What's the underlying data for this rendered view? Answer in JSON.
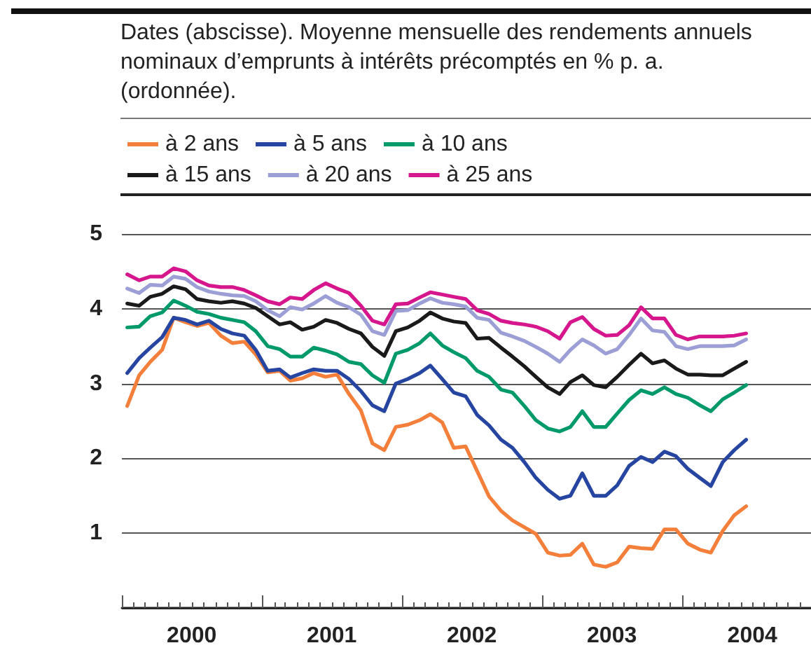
{
  "chart_data": {
    "type": "line",
    "title": "Dates (abscisse). Moyenne mensuelle des rendements annuels nominaux d’emprunts à intérêts précomptés en % p. a. (ordonnée).",
    "x": [
      "2000-01-15",
      "2000-02-15",
      "2000-03-15",
      "2000-04-15",
      "2000-05-15",
      "2000-06-15",
      "2000-07-15",
      "2000-08-15",
      "2000-09-15",
      "2000-10-15",
      "2000-11-15",
      "2000-12-15",
      "2001-01-15",
      "2001-02-15",
      "2001-03-15",
      "2001-04-15",
      "2001-05-15",
      "2001-06-15",
      "2001-07-15",
      "2001-08-15",
      "2001-09-15",
      "2001-10-15",
      "2001-11-15",
      "2001-12-15",
      "2002-01-15",
      "2002-02-15",
      "2002-03-15",
      "2002-04-15",
      "2002-05-15",
      "2002-06-15",
      "2002-07-15",
      "2002-08-15",
      "2002-09-15",
      "2002-10-15",
      "2002-11-15",
      "2002-12-15",
      "2003-01-15",
      "2003-02-15",
      "2003-03-15",
      "2003-04-15",
      "2003-05-15",
      "2003-06-15",
      "2003-07-15",
      "2003-08-15",
      "2003-09-15",
      "2003-10-15",
      "2003-11-15",
      "2003-12-15",
      "2004-01-15",
      "2004-02-15",
      "2004-03-15",
      "2004-04-15",
      "2004-05-15",
      "2004-06-15"
    ],
    "series": [
      {
        "name": "à 2 ans",
        "color": "#f47f3a",
        "values": [
          2.7,
          3.11,
          3.29,
          3.45,
          3.88,
          3.82,
          3.77,
          3.81,
          3.64,
          3.54,
          3.56,
          3.39,
          3.15,
          3.17,
          3.04,
          3.07,
          3.14,
          3.09,
          3.12,
          2.86,
          2.64,
          2.2,
          2.11,
          2.42,
          2.45,
          2.51,
          2.59,
          2.48,
          2.14,
          2.16,
          1.83,
          1.49,
          1.3,
          1.17,
          1.08,
          0.99,
          0.74,
          0.7,
          0.71,
          0.86,
          0.58,
          0.55,
          0.61,
          0.82,
          0.8,
          0.79,
          1.05,
          1.05,
          0.86,
          0.78,
          0.74,
          1.03,
          1.24,
          1.36
        ]
      },
      {
        "name": "à 5 ans",
        "color": "#2545a0",
        "values": [
          3.14,
          3.34,
          3.48,
          3.62,
          3.88,
          3.85,
          3.79,
          3.84,
          3.73,
          3.67,
          3.64,
          3.45,
          3.17,
          3.19,
          3.08,
          3.14,
          3.19,
          3.17,
          3.17,
          3.06,
          2.9,
          2.71,
          2.63,
          3.0,
          3.06,
          3.14,
          3.24,
          3.06,
          2.88,
          2.83,
          2.58,
          2.44,
          2.25,
          2.14,
          1.95,
          1.74,
          1.58,
          1.46,
          1.5,
          1.8,
          1.5,
          1.5,
          1.64,
          1.9,
          2.02,
          1.95,
          2.09,
          2.03,
          1.86,
          1.74,
          1.63,
          1.95,
          2.11,
          2.25
        ]
      },
      {
        "name": "à 10 ans",
        "color": "#00996a",
        "values": [
          3.75,
          3.76,
          3.9,
          3.95,
          4.11,
          4.04,
          3.96,
          3.93,
          3.88,
          3.85,
          3.82,
          3.7,
          3.5,
          3.46,
          3.36,
          3.36,
          3.48,
          3.44,
          3.39,
          3.29,
          3.26,
          3.11,
          3.01,
          3.4,
          3.45,
          3.54,
          3.67,
          3.51,
          3.42,
          3.34,
          3.17,
          3.09,
          2.92,
          2.88,
          2.7,
          2.51,
          2.4,
          2.36,
          2.42,
          2.63,
          2.42,
          2.42,
          2.6,
          2.78,
          2.91,
          2.86,
          2.95,
          2.86,
          2.81,
          2.71,
          2.63,
          2.79,
          2.88,
          2.98
        ]
      },
      {
        "name": "à 15 ans",
        "color": "#1a1a1a",
        "values": [
          4.07,
          4.04,
          4.16,
          4.2,
          4.3,
          4.26,
          4.13,
          4.1,
          4.08,
          4.1,
          4.07,
          4.01,
          3.9,
          3.79,
          3.82,
          3.72,
          3.76,
          3.85,
          3.81,
          3.73,
          3.67,
          3.49,
          3.37,
          3.7,
          3.75,
          3.84,
          3.95,
          3.87,
          3.83,
          3.81,
          3.6,
          3.61,
          3.48,
          3.36,
          3.23,
          3.09,
          2.95,
          2.86,
          3.02,
          3.11,
          2.98,
          2.95,
          3.09,
          3.25,
          3.4,
          3.27,
          3.31,
          3.2,
          3.12,
          3.12,
          3.11,
          3.11,
          3.2,
          3.29
        ]
      },
      {
        "name": "à 20 ans",
        "color": "#9b9fd6",
        "values": [
          4.27,
          4.21,
          4.32,
          4.31,
          4.43,
          4.4,
          4.29,
          4.23,
          4.2,
          4.18,
          4.17,
          4.1,
          3.98,
          3.9,
          4.02,
          3.99,
          4.07,
          4.17,
          4.08,
          4.02,
          3.92,
          3.7,
          3.65,
          3.97,
          3.98,
          4.07,
          4.14,
          4.08,
          4.06,
          4.03,
          3.88,
          3.85,
          3.68,
          3.63,
          3.57,
          3.49,
          3.4,
          3.29,
          3.45,
          3.59,
          3.51,
          3.4,
          3.46,
          3.65,
          3.87,
          3.71,
          3.69,
          3.5,
          3.46,
          3.5,
          3.5,
          3.5,
          3.51,
          3.59
        ]
      },
      {
        "name": "à 25 ans",
        "color": "#d6168c",
        "values": [
          4.46,
          4.38,
          4.43,
          4.43,
          4.54,
          4.5,
          4.38,
          4.31,
          4.29,
          4.29,
          4.25,
          4.18,
          4.1,
          4.06,
          4.15,
          4.13,
          4.25,
          4.34,
          4.27,
          4.21,
          4.04,
          3.84,
          3.79,
          4.06,
          4.07,
          4.15,
          4.22,
          4.19,
          4.16,
          4.13,
          3.98,
          3.93,
          3.84,
          3.81,
          3.79,
          3.76,
          3.7,
          3.6,
          3.82,
          3.89,
          3.73,
          3.64,
          3.65,
          3.78,
          4.02,
          3.87,
          3.87,
          3.65,
          3.59,
          3.63,
          3.63,
          3.63,
          3.64,
          3.67
        ]
      }
    ],
    "xlim": [
      "2000-01-01",
      "2004-12-01"
    ],
    "xticks": [
      {
        "value": "2000-01-01",
        "label": null
      },
      {
        "value": "2000-07-01",
        "label": "2000"
      },
      {
        "value": "2001-01-01",
        "label": null
      },
      {
        "value": "2001-07-01",
        "label": "2001"
      },
      {
        "value": "2002-01-01",
        "label": null
      },
      {
        "value": "2002-07-01",
        "label": "2002"
      },
      {
        "value": "2003-01-01",
        "label": null
      },
      {
        "value": "2003-07-01",
        "label": "2003"
      },
      {
        "value": "2004-01-01",
        "label": null
      },
      {
        "value": "2004-07-01",
        "label": "2004"
      }
    ],
    "ylim": [
      0,
      5
    ],
    "yticks": [
      {
        "value": 0,
        "label": null
      },
      1,
      2,
      3,
      4,
      5
    ],
    "grid": "y",
    "legend": "top left",
    "marker": "none",
    "line_style": "solid"
  }
}
